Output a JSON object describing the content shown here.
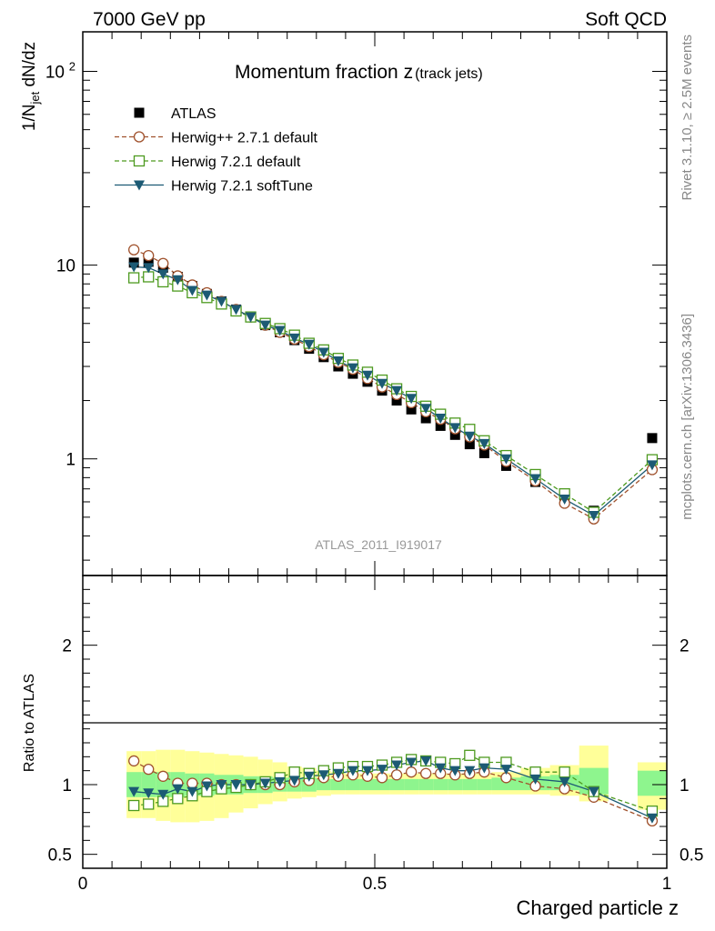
{
  "header": {
    "left": "7000 GeV pp",
    "right": "Soft QCD"
  },
  "side_labels": {
    "rivet": "Rivet 3.1.10, ≥ 2.5M events",
    "mcplots": "mcplots.cern.ch [arXiv:1306.3436]"
  },
  "chart_data": [
    {
      "type": "scatter",
      "panel": "main",
      "title": "Momentum fraction z",
      "title_suffix": "(track jets)",
      "watermark": "ATLAS_2011_I919017",
      "ylabel_main": "1/N",
      "ylabel_sub": "jet",
      "ylabel_tail": " dN/dz",
      "yscale": "log",
      "ylim": [
        0.25,
        160
      ],
      "xlim": [
        0,
        1
      ],
      "yticks": [
        {
          "value": 1,
          "label": "1"
        },
        {
          "value": 10,
          "label": "10"
        },
        {
          "value": 100,
          "label": "10",
          "sup": "2"
        }
      ],
      "legend": {
        "placement": "top-left"
      },
      "x": [
        0.0875,
        0.1125,
        0.1375,
        0.1625,
        0.1875,
        0.2125,
        0.2375,
        0.2625,
        0.2875,
        0.3125,
        0.3375,
        0.3625,
        0.3875,
        0.4125,
        0.4375,
        0.4625,
        0.4875,
        0.5125,
        0.5375,
        0.5625,
        0.5875,
        0.6125,
        0.6375,
        0.6625,
        0.6875,
        0.725,
        0.775,
        0.825,
        0.875,
        0.975
      ],
      "series": [
        {
          "name": "ATLAS",
          "color": "#000000",
          "marker": "square-filled",
          "line": "none",
          "values": [
            10.3,
            10.4,
            9.7,
            8.7,
            7.8,
            7.1,
            6.5,
            5.9,
            5.4,
            4.9,
            4.5,
            4.1,
            3.7,
            3.35,
            3.0,
            2.75,
            2.5,
            2.25,
            2.0,
            1.8,
            1.62,
            1.48,
            1.33,
            1.19,
            1.07,
            0.92,
            0.76,
            0.61,
            0.54,
            1.28
          ]
        },
        {
          "name": "Herwig++ 2.7.1 default",
          "color": "#a0522d",
          "marker": "circle-open",
          "line": "dashed",
          "values": [
            12.0,
            11.2,
            10.2,
            8.8,
            7.9,
            7.2,
            6.5,
            5.9,
            5.4,
            4.9,
            4.5,
            4.15,
            3.8,
            3.45,
            3.15,
            2.9,
            2.6,
            2.35,
            2.15,
            1.95,
            1.75,
            1.6,
            1.43,
            1.3,
            1.18,
            0.97,
            0.77,
            0.59,
            0.49,
            0.88
          ]
        },
        {
          "name": "Herwig 7.2.1 default",
          "color": "#4d9a1f",
          "marker": "square-open",
          "line": "dashed",
          "values": [
            8.6,
            8.7,
            8.2,
            7.8,
            7.2,
            6.8,
            6.3,
            5.8,
            5.4,
            5.0,
            4.7,
            4.35,
            3.95,
            3.65,
            3.3,
            3.05,
            2.8,
            2.55,
            2.3,
            2.1,
            1.87,
            1.7,
            1.53,
            1.42,
            1.24,
            1.04,
            0.83,
            0.66,
            0.53,
            0.99
          ]
        },
        {
          "name": "Herwig 7.2.1 softTune",
          "color": "#1c5a74",
          "marker": "triangle-down-filled",
          "line": "solid",
          "values": [
            9.8,
            9.7,
            9.0,
            8.4,
            7.4,
            7.0,
            6.5,
            5.9,
            5.4,
            4.9,
            4.6,
            4.2,
            3.9,
            3.55,
            3.2,
            2.95,
            2.7,
            2.45,
            2.25,
            2.05,
            1.82,
            1.62,
            1.45,
            1.31,
            1.2,
            1.0,
            0.79,
            0.62,
            0.51,
            0.93
          ]
        }
      ]
    },
    {
      "type": "scatter",
      "panel": "ratio",
      "ylabel": "Ratio to ATLAS",
      "xlabel": "Charged particle z",
      "ylim": [
        0.4,
        2.5
      ],
      "xlim": [
        0,
        1
      ],
      "yticks": [
        {
          "value": 0.5,
          "label": "0.5"
        },
        {
          "value": 1,
          "label": "1"
        },
        {
          "value": 2,
          "label": "2"
        }
      ],
      "xticks": [
        {
          "value": 0,
          "label": "0"
        },
        {
          "value": 0.5,
          "label": "0.5"
        },
        {
          "value": 1,
          "label": "1"
        }
      ],
      "bands": {
        "inner_color": "#8ef58e",
        "outer_color": "#ffff99",
        "bins": [
          {
            "x0": 0.075,
            "x1": 0.1,
            "inner": [
              0.91,
              1.09
            ],
            "outer": [
              0.76,
              1.24
            ]
          },
          {
            "x0": 0.1,
            "x1": 0.125,
            "inner": [
              0.91,
              1.09
            ],
            "outer": [
              0.76,
              1.24
            ]
          },
          {
            "x0": 0.125,
            "x1": 0.15,
            "inner": [
              0.91,
              1.09
            ],
            "outer": [
              0.74,
              1.25
            ]
          },
          {
            "x0": 0.15,
            "x1": 0.175,
            "inner": [
              0.91,
              1.09
            ],
            "outer": [
              0.73,
              1.25
            ]
          },
          {
            "x0": 0.175,
            "x1": 0.2,
            "inner": [
              0.92,
              1.08
            ],
            "outer": [
              0.73,
              1.24
            ]
          },
          {
            "x0": 0.2,
            "x1": 0.225,
            "inner": [
              0.92,
              1.08
            ],
            "outer": [
              0.74,
              1.23
            ]
          },
          {
            "x0": 0.225,
            "x1": 0.25,
            "inner": [
              0.93,
              1.07
            ],
            "outer": [
              0.76,
              1.22
            ]
          },
          {
            "x0": 0.25,
            "x1": 0.275,
            "inner": [
              0.93,
              1.07
            ],
            "outer": [
              0.8,
              1.21
            ]
          },
          {
            "x0": 0.275,
            "x1": 0.3,
            "inner": [
              0.94,
              1.06
            ],
            "outer": [
              0.83,
              1.2
            ]
          },
          {
            "x0": 0.3,
            "x1": 0.325,
            "inner": [
              0.94,
              1.06
            ],
            "outer": [
              0.86,
              1.18
            ]
          },
          {
            "x0": 0.325,
            "x1": 0.35,
            "inner": [
              0.95,
              1.05
            ],
            "outer": [
              0.88,
              1.16
            ]
          },
          {
            "x0": 0.35,
            "x1": 0.375,
            "inner": [
              0.95,
              1.05
            ],
            "outer": [
              0.9,
              1.13
            ]
          },
          {
            "x0": 0.375,
            "x1": 0.4,
            "inner": [
              0.95,
              1.05
            ],
            "outer": [
              0.91,
              1.12
            ]
          },
          {
            "x0": 0.4,
            "x1": 0.425,
            "inner": [
              0.96,
              1.04
            ],
            "outer": [
              0.92,
              1.1
            ]
          },
          {
            "x0": 0.425,
            "x1": 0.45,
            "inner": [
              0.96,
              1.04
            ],
            "outer": [
              0.93,
              1.09
            ]
          },
          {
            "x0": 0.45,
            "x1": 0.475,
            "inner": [
              0.96,
              1.04
            ],
            "outer": [
              0.93,
              1.08
            ]
          },
          {
            "x0": 0.475,
            "x1": 0.5,
            "inner": [
              0.96,
              1.04
            ],
            "outer": [
              0.93,
              1.08
            ]
          },
          {
            "x0": 0.5,
            "x1": 0.525,
            "inner": [
              0.96,
              1.04
            ],
            "outer": [
              0.93,
              1.08
            ]
          },
          {
            "x0": 0.525,
            "x1": 0.55,
            "inner": [
              0.96,
              1.04
            ],
            "outer": [
              0.93,
              1.08
            ]
          },
          {
            "x0": 0.55,
            "x1": 0.575,
            "inner": [
              0.96,
              1.04
            ],
            "outer": [
              0.93,
              1.08
            ]
          },
          {
            "x0": 0.575,
            "x1": 0.6,
            "inner": [
              0.96,
              1.04
            ],
            "outer": [
              0.93,
              1.08
            ]
          },
          {
            "x0": 0.6,
            "x1": 0.625,
            "inner": [
              0.96,
              1.04
            ],
            "outer": [
              0.93,
              1.08
            ]
          },
          {
            "x0": 0.625,
            "x1": 0.65,
            "inner": [
              0.96,
              1.04
            ],
            "outer": [
              0.93,
              1.08
            ]
          },
          {
            "x0": 0.65,
            "x1": 0.675,
            "inner": [
              0.96,
              1.04
            ],
            "outer": [
              0.93,
              1.08
            ]
          },
          {
            "x0": 0.675,
            "x1": 0.7,
            "inner": [
              0.96,
              1.04
            ],
            "outer": [
              0.93,
              1.08
            ]
          },
          {
            "x0": 0.7,
            "x1": 0.75,
            "inner": [
              0.96,
              1.05
            ],
            "outer": [
              0.93,
              1.09
            ]
          },
          {
            "x0": 0.75,
            "x1": 0.8,
            "inner": [
              0.96,
              1.06
            ],
            "outer": [
              0.93,
              1.12
            ]
          },
          {
            "x0": 0.8,
            "x1": 0.85,
            "inner": [
              0.96,
              1.07
            ],
            "outer": [
              0.92,
              1.14
            ]
          },
          {
            "x0": 0.85,
            "x1": 0.9,
            "inner": [
              0.93,
              1.12
            ],
            "outer": [
              0.88,
              1.28
            ]
          },
          {
            "x0": 0.95,
            "x1": 1.0,
            "inner": [
              0.92,
              1.1
            ],
            "outer": [
              0.82,
              1.16
            ]
          }
        ]
      },
      "reference_line": 1,
      "x": [
        0.0875,
        0.1125,
        0.1375,
        0.1625,
        0.1875,
        0.2125,
        0.2375,
        0.2625,
        0.2875,
        0.3125,
        0.3375,
        0.3625,
        0.3875,
        0.4125,
        0.4375,
        0.4625,
        0.4875,
        0.5125,
        0.5375,
        0.5625,
        0.5875,
        0.6125,
        0.6375,
        0.6625,
        0.6875,
        0.725,
        0.775,
        0.825,
        0.875,
        0.975
      ],
      "series": [
        {
          "name": "Herwig++ 2.7.1 default",
          "color": "#a0522d",
          "marker": "circle-open",
          "line": "dashed",
          "values": [
            1.17,
            1.11,
            1.06,
            1.01,
            1.01,
            1.01,
            1.0,
            1.0,
            1.0,
            1.0,
            1.0,
            1.02,
            1.03,
            1.05,
            1.06,
            1.07,
            1.06,
            1.05,
            1.07,
            1.09,
            1.08,
            1.08,
            1.07,
            1.08,
            1.09,
            1.05,
            0.99,
            0.97,
            0.91,
            0.74
          ]
        },
        {
          "name": "Herwig 7.2.1 default",
          "color": "#4d9a1f",
          "marker": "square-open",
          "line": "dashed",
          "values": [
            0.85,
            0.86,
            0.88,
            0.9,
            0.92,
            0.95,
            0.97,
            0.98,
            1.0,
            1.02,
            1.05,
            1.09,
            1.08,
            1.1,
            1.12,
            1.13,
            1.13,
            1.14,
            1.16,
            1.18,
            1.17,
            1.16,
            1.15,
            1.21,
            1.16,
            1.16,
            1.09,
            1.09,
            0.95,
            0.81
          ]
        },
        {
          "name": "Herwig 7.2.1 softTune",
          "color": "#1c5a74",
          "marker": "triangle-down-filled",
          "line": "solid",
          "values": [
            0.95,
            0.94,
            0.93,
            0.97,
            0.95,
            0.99,
            1.0,
            1.0,
            1.0,
            1.01,
            1.02,
            1.03,
            1.06,
            1.07,
            1.08,
            1.1,
            1.1,
            1.11,
            1.14,
            1.16,
            1.17,
            1.12,
            1.1,
            1.1,
            1.12,
            1.11,
            1.04,
            1.02,
            0.95,
            0.76
          ]
        }
      ]
    }
  ]
}
